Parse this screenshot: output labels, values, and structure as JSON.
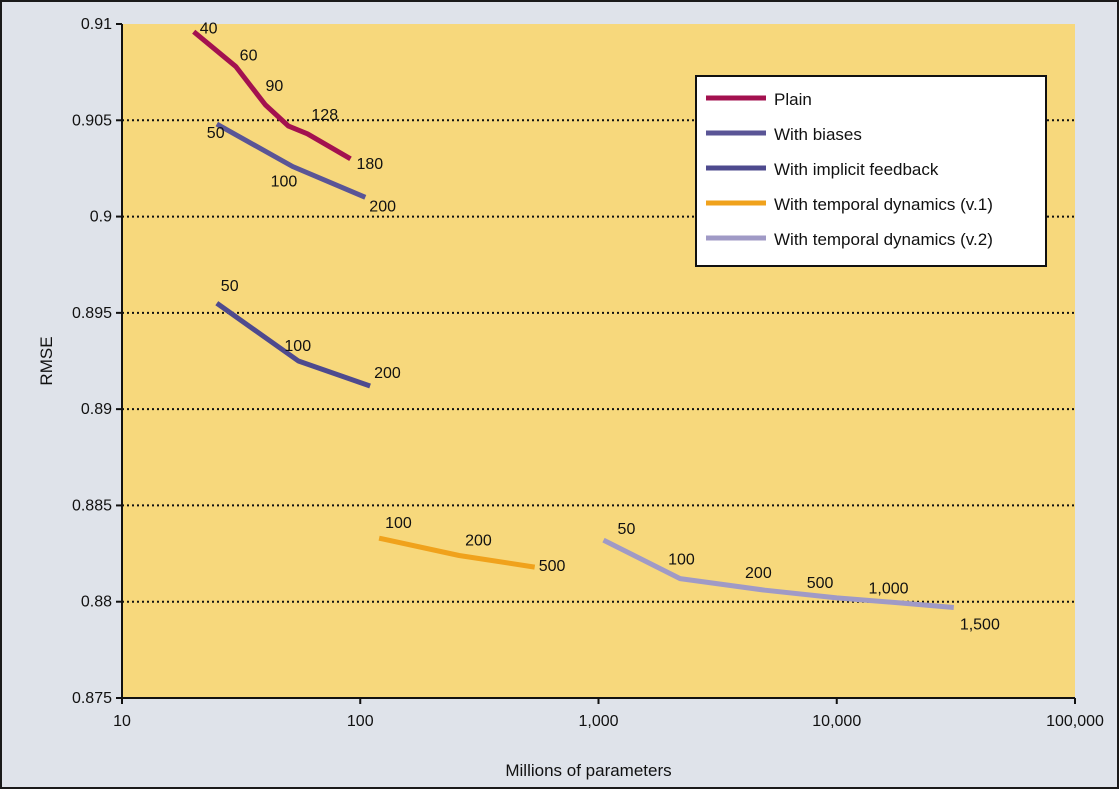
{
  "chart_data": {
    "type": "line",
    "title": "",
    "xlabel": "Millions of parameters",
    "ylabel": "RMSE",
    "xscale": "log",
    "xlim": [
      10,
      100000
    ],
    "ylim": [
      0.875,
      0.91
    ],
    "xticks": [
      10,
      100,
      1000,
      10000,
      100000
    ],
    "xtick_labels": [
      "10",
      "100",
      "1,000",
      "10,000",
      "100,000"
    ],
    "yticks": [
      0.875,
      0.88,
      0.885,
      0.89,
      0.895,
      0.9,
      0.905,
      0.91
    ],
    "ytick_labels": [
      "0.875",
      "0.88",
      "0.885",
      "0.89",
      "0.895",
      "0.9",
      "0.905",
      "0.91"
    ],
    "grid": "horizontal dotted",
    "background": "#f7d87c",
    "legend_position": "top-right",
    "series": [
      {
        "name": "Plain",
        "color": "#a3114f",
        "points": [
          {
            "x": 20,
            "y": 0.9096,
            "label": "40"
          },
          {
            "x": 30,
            "y": 0.9078,
            "label": "60"
          },
          {
            "x": 40,
            "y": 0.9058,
            "label": "90"
          },
          {
            "x": 50,
            "y": 0.9047,
            "label": ""
          },
          {
            "x": 60,
            "y": 0.9043,
            "label": "128"
          },
          {
            "x": 91,
            "y": 0.903,
            "label": "180"
          }
        ]
      },
      {
        "name": "With biases",
        "color": "#5a5596",
        "points": [
          {
            "x": 25,
            "y": 0.9048,
            "label": "50"
          },
          {
            "x": 52,
            "y": 0.9026,
            "label": "100"
          },
          {
            "x": 105,
            "y": 0.901,
            "label": "200"
          }
        ]
      },
      {
        "name": "With implicit feedback",
        "color": "#4e4a8e",
        "points": [
          {
            "x": 25,
            "y": 0.8955,
            "label": "50"
          },
          {
            "x": 55,
            "y": 0.8925,
            "label": "100"
          },
          {
            "x": 110,
            "y": 0.8912,
            "label": "200"
          }
        ]
      },
      {
        "name": "With temporal dynamics (v.1)",
        "color": "#f0a21c",
        "points": [
          {
            "x": 120,
            "y": 0.8833,
            "label": "100"
          },
          {
            "x": 260,
            "y": 0.8824,
            "label": "200"
          },
          {
            "x": 540,
            "y": 0.8818,
            "label": "500"
          }
        ]
      },
      {
        "name": "With temporal dynamics (v.2)",
        "color": "#a09ac6",
        "points": [
          {
            "x": 1050,
            "y": 0.8832,
            "label": "50"
          },
          {
            "x": 2200,
            "y": 0.8812,
            "label": "100"
          },
          {
            "x": 5000,
            "y": 0.8806,
            "label": "200"
          },
          {
            "x": 10000,
            "y": 0.8802,
            "label": "500"
          },
          {
            "x": 20000,
            "y": 0.8799,
            "label": "1,000"
          },
          {
            "x": 31000,
            "y": 0.8797,
            "label": "1,500"
          }
        ]
      }
    ]
  }
}
